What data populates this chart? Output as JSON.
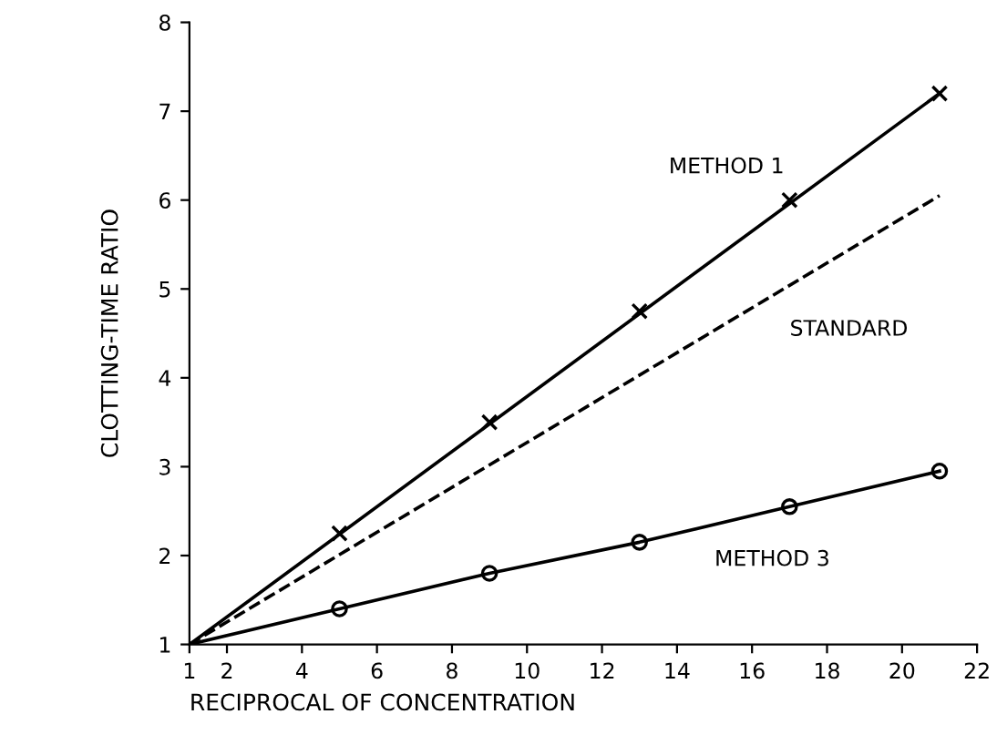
{
  "chart_data": {
    "type": "line",
    "xlabel": "RECIPROCAL OF CONCENTRATION",
    "ylabel": "CLOTTING-TIME RATIO",
    "xlim": [
      1,
      22
    ],
    "xticks": [
      1,
      2,
      4,
      6,
      8,
      10,
      12,
      14,
      16,
      18,
      20,
      22
    ],
    "ylim": [
      1,
      8
    ],
    "yticks": [
      1,
      2,
      3,
      4,
      5,
      6,
      7,
      8
    ],
    "grid": false,
    "legend": false,
    "series": [
      {
        "name": "METHOD 1",
        "color": "#000000",
        "x": [
          1,
          21
        ],
        "values": [
          1,
          7.2
        ],
        "marker": "none",
        "line_style": "solid"
      },
      {
        "type": "scatter",
        "color": "#000000",
        "x": [
          5,
          9,
          13,
          17,
          21
        ],
        "values": [
          2.25,
          3.5,
          4.75,
          6.0,
          7.2
        ],
        "marker": "cross"
      },
      {
        "name": "STANDARD",
        "color": "#000000",
        "x": [
          1,
          21
        ],
        "values": [
          1,
          6.05
        ],
        "marker": "none",
        "line_style": "dashed"
      },
      {
        "name": "METHOD 3",
        "color": "#000000",
        "x": [
          1,
          5,
          9,
          13,
          17,
          21
        ],
        "values": [
          1,
          1.4,
          1.8,
          2.15,
          2.55,
          2.95
        ],
        "marker": "none",
        "line_style": "solid"
      },
      {
        "type": "scatter",
        "color": "#000000",
        "x": [
          5,
          9,
          13,
          17,
          21
        ],
        "values": [
          1.4,
          1.8,
          2.15,
          2.55,
          2.95
        ],
        "marker": "circle"
      }
    ]
  }
}
